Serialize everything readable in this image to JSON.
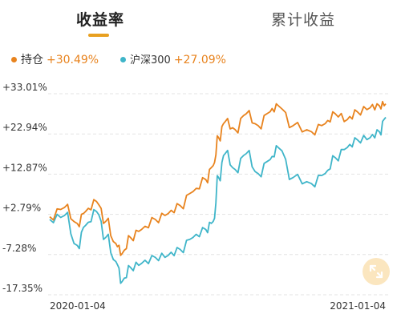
{
  "tabs": [
    {
      "label": "收益率",
      "active": true
    },
    {
      "label": "累计收益",
      "active": false
    }
  ],
  "legend": [
    {
      "name": "持仓",
      "value": "+30.49%",
      "color": "#e8831e"
    },
    {
      "name": "沪深300",
      "value": "+27.09%",
      "color": "#3fb5c9"
    }
  ],
  "icons": {
    "expand": "expand-icon"
  },
  "chart_data": {
    "type": "line",
    "y_ticks": [
      "+33.01%",
      "+22.94%",
      "+12.87%",
      "+2.79%",
      "-7.28%",
      "-17.35%"
    ],
    "ylim": [
      -17.35,
      33.01
    ],
    "x_tick_labels": [
      "2020-01-04",
      "2021-01-04"
    ],
    "xlim": [
      "2020-01-04",
      "2021-01-04"
    ],
    "grid": "dashed horizontal",
    "series": [
      {
        "name": "持仓",
        "color": "#e8831e",
        "x": [
          "2020-01-04",
          "2020-01-20",
          "2020-02-03",
          "2020-02-12",
          "2020-02-24",
          "2020-03-05",
          "2020-03-16",
          "2020-03-23",
          "2020-04-01",
          "2020-04-13",
          "2020-04-28",
          "2020-05-12",
          "2020-05-25",
          "2020-06-08",
          "2020-06-22",
          "2020-06-30",
          "2020-07-06",
          "2020-07-13",
          "2020-07-24",
          "2020-08-05",
          "2020-08-18",
          "2020-08-31",
          "2020-09-09",
          "2020-09-25",
          "2020-10-15",
          "2020-10-30",
          "2020-11-10",
          "2020-11-23",
          "2020-12-04",
          "2020-12-18",
          "2020-12-28",
          "2021-01-04"
        ],
        "values": [
          2.2,
          4.5,
          0.5,
          3.5,
          6.0,
          1.0,
          -4.5,
          -7.0,
          -3.0,
          -1.0,
          1.5,
          3.0,
          5.0,
          8.5,
          11.5,
          15.0,
          22.0,
          26.0,
          24.0,
          28.0,
          25.0,
          28.5,
          30.0,
          25.0,
          23.5,
          25.5,
          28.0,
          26.5,
          28.5,
          29.5,
          30.0,
          30.49
        ]
      },
      {
        "name": "沪深300",
        "color": "#3fb5c9",
        "x": [
          "2020-01-04",
          "2020-01-20",
          "2020-02-03",
          "2020-02-12",
          "2020-02-24",
          "2020-03-05",
          "2020-03-16",
          "2020-03-23",
          "2020-04-01",
          "2020-04-13",
          "2020-04-28",
          "2020-05-12",
          "2020-05-25",
          "2020-06-08",
          "2020-06-22",
          "2020-06-30",
          "2020-07-06",
          "2020-07-13",
          "2020-07-24",
          "2020-08-05",
          "2020-08-18",
          "2020-08-31",
          "2020-09-09",
          "2020-09-25",
          "2020-10-15",
          "2020-10-30",
          "2020-11-10",
          "2020-11-23",
          "2020-12-04",
          "2020-12-18",
          "2020-12-28",
          "2021-01-04"
        ],
        "values": [
          1.5,
          2.5,
          -5.0,
          0.0,
          3.5,
          -3.0,
          -9.0,
          -14.0,
          -10.5,
          -9.5,
          -8.0,
          -7.5,
          -6.0,
          -3.0,
          -1.0,
          1.0,
          12.0,
          18.0,
          14.0,
          18.0,
          13.0,
          16.5,
          19.5,
          12.0,
          10.5,
          13.0,
          17.0,
          19.5,
          21.5,
          22.0,
          23.5,
          27.09
        ]
      }
    ]
  }
}
